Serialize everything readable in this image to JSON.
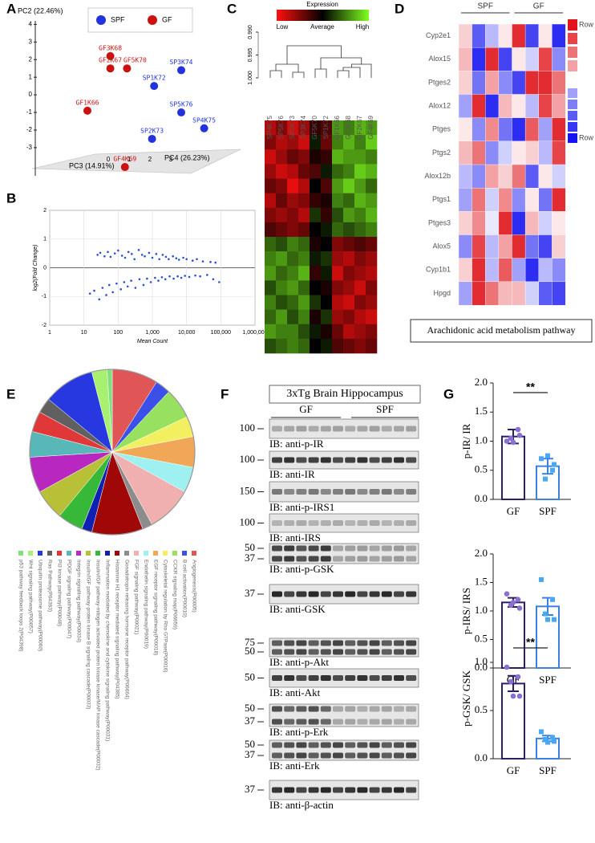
{
  "chart_data": [
    {
      "type": "scatter",
      "panel": "A",
      "y_label": "PC2 (22.46%)",
      "x_label": "PC4 (26.23%)",
      "z_label": "PC3 (14.91%)",
      "xlim": [
        -3.5,
        5
      ],
      "ylim": [
        -4.6,
        4.2
      ],
      "xticks": [
        0,
        1,
        2,
        3
      ],
      "yticks": [
        -3,
        -2,
        -1,
        0,
        1,
        2,
        3,
        4
      ],
      "grid": false,
      "series": [
        {
          "name": "SPF",
          "color": "#2233dd",
          "x": [
            3.5,
            2.2,
            3.5,
            4.6,
            2.1
          ],
          "values": [
            1.4,
            0.5,
            -1.0,
            -1.9,
            -2.5
          ],
          "labels": [
            "SP3K74",
            "SP1K72",
            "SP5K76",
            "SP4K75",
            "SP2K73"
          ]
        },
        {
          "name": "GF",
          "color": "#cc1111",
          "x": [
            0.1,
            0.1,
            0.9,
            -1.0,
            0.8
          ],
          "values": [
            2.2,
            1.5,
            1.5,
            -0.9,
            -4.1
          ],
          "labels": [
            "GF3K68",
            "GF2K67",
            "GF5K70",
            "GF1K66",
            "GF4K69"
          ]
        }
      ]
    },
    {
      "type": "scatter",
      "panel": "B",
      "y_label": "log2(Fold Change)",
      "x_label": "Mean Count",
      "log_x": true,
      "grid": true,
      "color": "#2a4fd6",
      "xlim": [
        1,
        1000000
      ],
      "ylim": [
        -2,
        2
      ],
      "xticks": [
        1,
        10,
        100,
        {
          "value": 1000,
          "label": "1,000"
        },
        {
          "value": 10000,
          "label": "10,000"
        },
        {
          "value": 100000,
          "label": "100,000"
        },
        {
          "value": 1000000,
          "label": "1,000,000"
        }
      ],
      "yticks": [
        -2,
        -1,
        0,
        1,
        2
      ],
      "x": [
        25,
        30,
        40,
        50,
        60,
        80,
        100,
        130,
        160,
        200,
        250,
        300,
        400,
        500,
        600,
        800,
        1000,
        1300,
        1600,
        2000,
        2500,
        3000,
        4000,
        5000,
        6000,
        8000,
        10000,
        15000,
        20000,
        30000,
        50000,
        70000,
        15,
        20,
        28,
        35,
        45,
        55,
        70,
        90,
        120,
        150,
        190,
        240,
        320,
        420,
        550,
        700,
        900,
        1200,
        1500,
        1900,
        2400,
        3200,
        4200,
        5500,
        7000,
        9000,
        12000,
        18000,
        25000,
        40000,
        60000,
        90000
      ],
      "values": [
        0.45,
        0.52,
        0.4,
        0.55,
        0.38,
        0.5,
        0.6,
        0.42,
        0.35,
        0.55,
        0.48,
        0.3,
        0.62,
        0.45,
        0.4,
        0.52,
        0.35,
        0.48,
        0.3,
        0.45,
        0.38,
        0.3,
        0.4,
        0.33,
        0.28,
        0.35,
        0.3,
        0.25,
        0.3,
        0.22,
        0.2,
        0.18,
        -0.9,
        -0.8,
        -1.1,
        -0.7,
        -0.95,
        -0.6,
        -0.85,
        -0.55,
        -0.75,
        -0.5,
        -0.65,
        -0.45,
        -0.7,
        -0.4,
        -0.6,
        -0.38,
        -0.5,
        -0.35,
        -0.45,
        -0.33,
        -0.4,
        -0.3,
        -0.38,
        -0.3,
        -0.35,
        -0.28,
        -0.32,
        -0.27,
        -0.3,
        -0.25,
        -0.4,
        -0.5
      ]
    },
    {
      "type": "heatmap",
      "panel": "C",
      "title": "Expression",
      "scale_labels": [
        "Low",
        "Average",
        "High"
      ],
      "colors": [
        "#ff1010",
        "#000000",
        "#80ff20"
      ],
      "ylim": [
        0.99,
        1.0
      ],
      "yticks": [
        {
          "value": 0.99,
          "label": "0.990"
        },
        {
          "value": 0.995,
          "label": "0.995"
        },
        {
          "value": 1,
          "label": "1.000"
        }
      ],
      "columns": [
        "SP4K75",
        "SP5K76",
        "SP2K73",
        "SP3K74",
        "GF5K70",
        "SP1K72",
        "GF1K66",
        "GF3K68",
        "GF2K67",
        "GF4K69"
      ],
      "values": [
        [
          -0.7,
          -0.5,
          -0.8,
          -0.6,
          -0.2,
          -0.3,
          0.6,
          0.5,
          0.7,
          0.6
        ],
        [
          -0.5,
          -0.7,
          -0.6,
          -0.8,
          0.1,
          -0.4,
          0.5,
          0.7,
          0.5,
          0.8
        ],
        [
          -0.8,
          -0.6,
          -0.4,
          -0.5,
          -0.1,
          -0.2,
          0.7,
          0.6,
          0.6,
          0.5
        ],
        [
          -0.6,
          -0.8,
          -0.7,
          -0.4,
          -0.3,
          0.1,
          0.4,
          0.5,
          0.8,
          0.7
        ],
        [
          -0.4,
          -0.5,
          -0.9,
          -0.7,
          0.0,
          -0.3,
          0.6,
          0.8,
          0.6,
          0.4
        ],
        [
          -0.7,
          -0.4,
          -0.6,
          -0.5,
          -0.2,
          -0.1,
          0.5,
          0.4,
          0.7,
          0.6
        ],
        [
          -0.5,
          -0.6,
          -0.5,
          -0.7,
          0.2,
          -0.2,
          0.3,
          0.6,
          0.5,
          0.7
        ],
        [
          -0.3,
          -0.4,
          -0.5,
          -0.4,
          0.0,
          0.1,
          0.4,
          0.3,
          0.4,
          0.5
        ],
        [
          0.4,
          0.3,
          0.5,
          0.4,
          -0.1,
          0.0,
          -0.5,
          -0.4,
          -0.3,
          -0.4
        ],
        [
          0.5,
          0.6,
          0.4,
          0.5,
          0.1,
          0.2,
          -0.6,
          -0.7,
          -0.5,
          -0.6
        ],
        [
          0.6,
          0.4,
          0.5,
          0.7,
          -0.2,
          0.1,
          -0.8,
          -0.5,
          -0.6,
          -0.7
        ],
        [
          0.3,
          0.5,
          0.6,
          0.4,
          0.0,
          -0.1,
          -0.5,
          -0.6,
          -0.8,
          -0.5
        ],
        [
          0.5,
          0.3,
          0.4,
          0.6,
          0.2,
          0.0,
          -0.7,
          -0.8,
          -0.5,
          -0.6
        ],
        [
          0.4,
          0.6,
          0.3,
          0.5,
          -0.1,
          0.2,
          -0.6,
          -0.5,
          -0.7,
          -0.8
        ],
        [
          0.6,
          0.5,
          0.5,
          0.3,
          0.1,
          -0.1,
          -0.4,
          -0.7,
          -0.6,
          -0.5
        ],
        [
          0.3,
          0.4,
          0.5,
          0.4,
          0.0,
          0.1,
          -0.3,
          -0.4,
          -0.5,
          -0.4
        ]
      ]
    },
    {
      "type": "heatmap",
      "panel": "D",
      "title": "Arachidonic acid metabolism pathway",
      "scale_labels": [
        "Row max",
        "Row min"
      ],
      "colors": [
        "#1515f0",
        "#ffffff",
        "#e0151b"
      ],
      "groups": [
        "SPF",
        "GF"
      ],
      "rows": [
        "Cyp2e1",
        "Alox15",
        "Ptges2",
        "Alox12",
        "Ptges",
        "Ptgs2",
        "Alox12b",
        "Ptgs1",
        "Ptges3",
        "Alox5",
        "Cyp1b1",
        "Hpgd"
      ],
      "values": [
        [
          0.2,
          -0.7,
          -0.3,
          0.1,
          0.9,
          -0.8,
          0.1,
          -0.9
        ],
        [
          0.3,
          -0.9,
          0.9,
          -0.8,
          0.1,
          -0.2,
          0.8,
          -0.5
        ],
        [
          0.2,
          -0.6,
          0.4,
          -0.5,
          -0.8,
          0.9,
          0.9,
          0.6
        ],
        [
          -0.4,
          0.9,
          -0.9,
          0.3,
          0.1,
          -0.3,
          0.8,
          0.4
        ],
        [
          0.1,
          -0.5,
          0.5,
          -0.6,
          -0.9,
          0.7,
          -0.4,
          0.9
        ],
        [
          0.3,
          0.6,
          -0.5,
          -0.2,
          0.1,
          0.2,
          -0.3,
          0.8
        ],
        [
          -0.3,
          -0.5,
          0.4,
          0.2,
          0.6,
          -0.7,
          0.1,
          -0.2
        ],
        [
          -0.4,
          0.6,
          -0.2,
          0.5,
          -0.5,
          0.1,
          -0.6,
          0.9
        ],
        [
          0.2,
          0.5,
          -0.1,
          0.9,
          -0.9,
          0.3,
          -0.2,
          0.1
        ],
        [
          -0.5,
          0.8,
          -0.3,
          0.4,
          0.9,
          -0.6,
          -0.8,
          0.2
        ],
        [
          0.2,
          0.9,
          -0.3,
          0.7,
          -0.4,
          -0.9,
          -0.3,
          -0.5
        ],
        [
          -0.4,
          0.9,
          0.6,
          0.3,
          0.3,
          -0.2,
          -0.7,
          -0.8
        ]
      ]
    },
    {
      "type": "pie",
      "panel": "E",
      "categories": [
        "Angiogenesis(P00005)",
        "B cell activation(P00010)",
        "CCKR signaling map(P06959)",
        "Cytoskeletal regulation by Rho GTPase(P00016)",
        "EGF receptor signaling pathway(P00018)",
        "Endothelin signaling pathway(P00019)",
        "FGF signaling pathway(P00021)",
        "Gonadotropin-releasing hormone receptor pathway(P06664)",
        "Histamine H1 receptor mediated signaling pathway(P04385)",
        "Inflammation mediated by chemokine and cytokine signaling pathway(P00031)",
        "Insulin/IGF pathway-mitogen activated protein kinase kinase/MAP kinase cascade(P00032)",
        "Insulin/IGF pathway-protein kinase B signaling cascade(P00033)",
        "Integrin signalling pathway(P00034)",
        "PDGF signaling pathway(P00047)",
        "PI3 kinase pathway(P00048)",
        "Ras Pathway(P04393)",
        "Ubiquitin proteasome pathway(P00060)",
        "Wnt signaling pathway(P00057)",
        "p53 pathway feedback loops 2(P04398)"
      ],
      "values": [
        9,
        3,
        6,
        4,
        6,
        5,
        9,
        2,
        10,
        2,
        5,
        6,
        7,
        5,
        4,
        3,
        10,
        3,
        1
      ],
      "colors": [
        "#e05656",
        "#3a50e8",
        "#98e060",
        "#f2f060",
        "#f0a858",
        "#9ff0f0",
        "#f0b0b0",
        "#8c8c8c",
        "#a00808",
        "#1020b0",
        "#38b838",
        "#b8c038",
        "#b828c0",
        "#58b8b8",
        "#e03838",
        "#606060",
        "#2838e0",
        "#a8f070",
        "#80e080"
      ]
    },
    {
      "type": "bar",
      "panel": "G",
      "y_label": "p-IR/ IR",
      "categories": [
        "GF",
        "SPF"
      ],
      "values": [
        1.08,
        0.57
      ],
      "errors": [
        0.12,
        0.13
      ],
      "points": [
        [
          1.0,
          1.2,
          1.05,
          1.1,
          0.98
        ],
        [
          0.7,
          0.5,
          0.35,
          0.6,
          0.75
        ]
      ],
      "annotation": "**",
      "colors": [
        "#2b1f66",
        "#3b82e0"
      ],
      "point_colors": [
        "#8a70d0",
        "#4aa8f0"
      ],
      "ylim": [
        0,
        2
      ],
      "yticks": [
        {
          "value": 0,
          "label": "0.0"
        },
        0.5,
        {
          "value": 1,
          "label": "1.0"
        },
        1.5,
        {
          "value": 2,
          "label": "2.0"
        }
      ]
    },
    {
      "type": "bar",
      "y_label": "p-IRS/ IRS",
      "categories": [
        "GF",
        "SPF"
      ],
      "values": [
        1.15,
        1.08
      ],
      "errors": [
        0.08,
        0.15
      ],
      "points": [
        [
          1.3,
          1.2,
          1.1,
          1.05,
          1.15
        ],
        [
          1.55,
          1.2,
          0.95,
          0.85,
          0.85
        ]
      ],
      "colors": [
        "#2b1f66",
        "#3b82e0"
      ],
      "point_colors": [
        "#8a70d0",
        "#4aa8f0"
      ],
      "ylim": [
        0,
        2
      ],
      "yticks": [
        {
          "value": 0,
          "label": "0.0"
        },
        0.5,
        {
          "value": 1,
          "label": "1.0"
        },
        1.5,
        {
          "value": 2,
          "label": "2.0"
        }
      ]
    },
    {
      "type": "bar",
      "y_label": "p-GSK/ GSK",
      "categories": [
        "GF",
        "SPF"
      ],
      "values": [
        0.78,
        0.21
      ],
      "errors": [
        0.08,
        0.03
      ],
      "points": [
        [
          0.95,
          0.85,
          0.8,
          0.65,
          0.65
        ],
        [
          0.28,
          0.22,
          0.2,
          0.18,
          0.17
        ]
      ],
      "annotation": "**",
      "colors": [
        "#2b1f66",
        "#3b82e0"
      ],
      "point_colors": [
        "#8a70d0",
        "#4aa8f0"
      ],
      "ylim": [
        0,
        1.25
      ],
      "yticks": [
        {
          "value": 0,
          "label": "0.0"
        },
        0.5,
        {
          "value": 1,
          "label": "1.0"
        }
      ]
    }
  ],
  "blot": {
    "panel": "F",
    "title": "3xTg Brain Hippocampus",
    "groups": [
      "GF",
      "SPF"
    ],
    "blots": [
      {
        "markers": [
          100
        ],
        "label": "IB: anti-p-IR"
      },
      {
        "markers": [
          100
        ],
        "label": "IB: anti-IR"
      },
      {
        "markers": [
          150
        ],
        "label": "IB: anti-p-IRS1"
      },
      {
        "markers": [
          100
        ],
        "label": "IB: anti-IRS"
      },
      {
        "markers": [
          50,
          37
        ],
        "label": "IB: anti-p-GSK"
      },
      {
        "markers": [
          37
        ],
        "label": "IB: anti-GSK"
      },
      {
        "markers": [
          75,
          50
        ],
        "label": "IB: anti-p-Akt"
      },
      {
        "markers": [
          50
        ],
        "label": "IB: anti-Akt"
      },
      {
        "markers": [
          50,
          37
        ],
        "label": "IB: anti-p-Erk"
      },
      {
        "markers": [
          50,
          37
        ],
        "label": "IB: anti-Erk"
      },
      {
        "markers": [
          37
        ],
        "label": "IB: anti-β-actin"
      }
    ]
  }
}
